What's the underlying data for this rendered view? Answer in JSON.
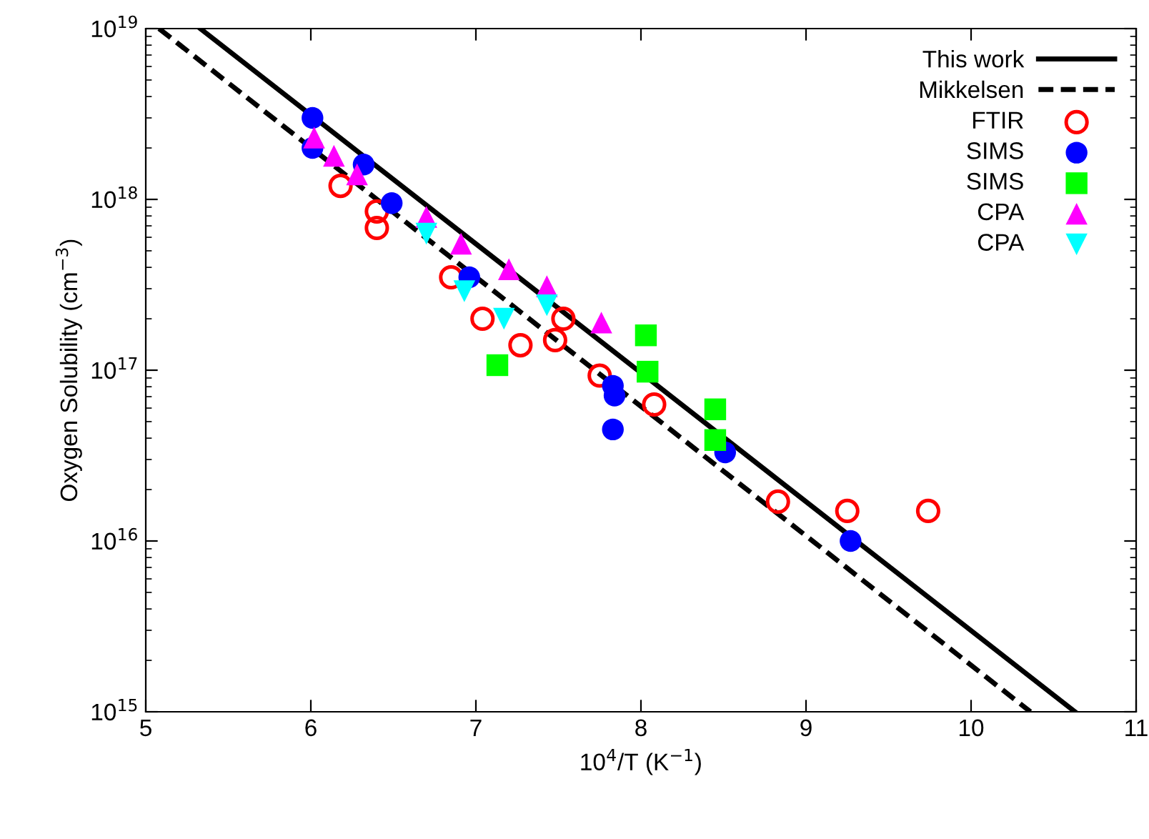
{
  "chart_data": {
    "type": "scatter",
    "xlabel": "10$^{4}$/T (K$^{−1}$)",
    "ylabel": "Oxygen Solubility (cm$^{−3}$)",
    "log": "y",
    "xlim": [
      5,
      11
    ],
    "xticks": [
      5,
      6,
      7,
      8,
      9,
      10,
      11
    ],
    "ylim": [
      1000000000000000.0,
      1e+19
    ],
    "yticks": [
      {
        "value": 1000000000000000.0,
        "label": "10$^{15}$"
      },
      {
        "value": 1e+16,
        "label": "10$^{16}$"
      },
      {
        "value": 1e+17,
        "label": "10$^{17}$"
      },
      {
        "value": 1e+18,
        "label": "10$^{18}$"
      },
      {
        "value": 1e+19,
        "label": "10$^{19}$"
      }
    ],
    "grid": false,
    "legend": "top right",
    "series": [
      {
        "name": "This work",
        "type": "line",
        "line_style": "solid",
        "marker": "none",
        "color": "#000000",
        "x": [
          5.33,
          10.63
        ],
        "values": [
          1e+19,
          1000000000000000.0
        ]
      },
      {
        "name": "Mikkelsen",
        "type": "line",
        "line_style": "dashed",
        "marker": "none",
        "color": "#000000",
        "x": [
          5.08,
          10.36
        ],
        "values": [
          1e+19,
          1000000000000000.0
        ]
      },
      {
        "name": "FTIR",
        "marker": "circle-open",
        "color": "#ff0000",
        "x": [
          6.18,
          6.4,
          6.4,
          6.85,
          7.04,
          7.27,
          7.48,
          7.53,
          7.75,
          8.08,
          8.83,
          9.25,
          9.74
        ],
        "values": [
          1.2e+18,
          8.5e+17,
          6.8e+17,
          3.5e+17,
          2e+17,
          1.4e+17,
          1.5e+17,
          2e+17,
          9.3e+16,
          6.3e+16,
          1.7e+16,
          1.5e+16,
          1.5e+16
        ]
      },
      {
        "name": "SIMS",
        "marker": "circle",
        "color": "#0000ff",
        "x": [
          6.01,
          6.01,
          6.32,
          6.49,
          6.96,
          7.83,
          7.84,
          7.83,
          8.51,
          9.27
        ],
        "values": [
          3e+18,
          2e+18,
          1.6e+18,
          9.5e+17,
          3.5e+17,
          8.1e+16,
          7.1e+16,
          4.5e+16,
          3.3e+16,
          1e+16
        ]
      },
      {
        "name": "SIMS",
        "marker": "square",
        "color": "#00ff00",
        "x": [
          7.13,
          8.03,
          8.04,
          8.45,
          8.45
        ],
        "values": [
          1.07e+17,
          1.6e+17,
          9.8e+16,
          5.9e+16,
          3.9e+16
        ]
      },
      {
        "name": "CPA",
        "marker": "triangle",
        "color": "#ff00ff",
        "x": [
          6.02,
          6.14,
          6.28,
          6.7,
          6.91,
          7.2,
          7.43,
          7.76
        ],
        "values": [
          2.3e+18,
          1.8e+18,
          1.4e+18,
          7.9e+17,
          5.5e+17,
          3.9e+17,
          3.1e+17,
          1.9e+17
        ]
      },
      {
        "name": "CPA",
        "marker": "triangle_down",
        "color": "#00ffff",
        "x": [
          6.7,
          6.93,
          7.17,
          7.43
        ],
        "values": [
          6.3e+17,
          2.9e+17,
          2e+17,
          2.4e+17
        ]
      }
    ]
  }
}
